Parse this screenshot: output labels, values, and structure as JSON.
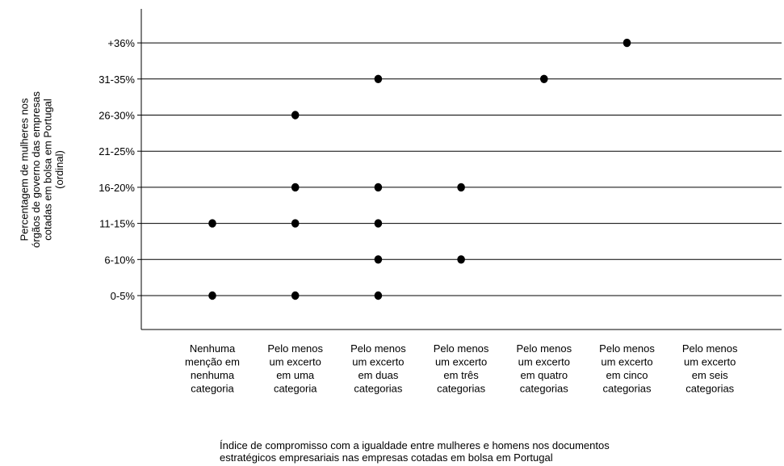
{
  "chart_data": {
    "type": "scatter",
    "title": "",
    "xlabel": "Índice de compromisso com a igualdade entre mulheres e homens nos documentos estratégicos empresariais nas empresas cotadas em bolsa em Portugal",
    "xlabel_lines": [
      "Índice de compromisso com a igualdade entre mulheres e homens nos documentos",
      "estratégicos empresariais nas empresas cotadas em bolsa em Portugal"
    ],
    "ylabel": "Percentagem de mulheres nos órgãos de governo das empresas cotadas em bolsa em Portugal (ordinal)",
    "ylabel_lines": [
      "Percentagem de mulheres nos",
      "órgãos de governo das empresas",
      "cotadas em bolsa em Portugal",
      "(ordinal)"
    ],
    "categories": [
      "Nenhuma menção em nenhuma categoria",
      "Pelo menos um excerto em uma categoria",
      "Pelo menos um excerto em duas categorias",
      "Pelo menos um excerto em três categorias",
      "Pelo menos um excerto em quatro categorias",
      "Pelo menos um excerto em cinco categorias",
      "Pelo menos um excerto em seis categorias"
    ],
    "category_lines": [
      [
        "Nenhuma",
        "menção em",
        "nenhuma",
        "categoria"
      ],
      [
        "Pelo menos",
        "um excerto",
        "em uma",
        "categoria"
      ],
      [
        "Pelo menos",
        "um excerto",
        "em duas",
        "categorias"
      ],
      [
        "Pelo menos",
        "um excerto",
        "em três",
        "categorias"
      ],
      [
        "Pelo menos",
        "um excerto",
        "em quatro",
        "categorias"
      ],
      [
        "Pelo menos",
        "um excerto",
        "em cinco",
        "categorias"
      ],
      [
        "Pelo menos",
        "um excerto",
        "em seis",
        "categorias"
      ]
    ],
    "y_categories": [
      "0-5%",
      "6-10%",
      "11-15%",
      "16-20%",
      "21-25%",
      "26-30%",
      "31-35%",
      "+36%"
    ],
    "grid": true,
    "points": [
      {
        "x": "Nenhuma menção em nenhuma categoria",
        "y": "0-5%"
      },
      {
        "x": "Nenhuma menção em nenhuma categoria",
        "y": "11-15%"
      },
      {
        "x": "Pelo menos um excerto em uma categoria",
        "y": "0-5%"
      },
      {
        "x": "Pelo menos um excerto em uma categoria",
        "y": "11-15%"
      },
      {
        "x": "Pelo menos um excerto em uma categoria",
        "y": "16-20%"
      },
      {
        "x": "Pelo menos um excerto em uma categoria",
        "y": "26-30%"
      },
      {
        "x": "Pelo menos um excerto em duas categorias",
        "y": "0-5%"
      },
      {
        "x": "Pelo menos um excerto em duas categorias",
        "y": "6-10%"
      },
      {
        "x": "Pelo menos um excerto em duas categorias",
        "y": "11-15%"
      },
      {
        "x": "Pelo menos um excerto em duas categorias",
        "y": "16-20%"
      },
      {
        "x": "Pelo menos um excerto em duas categorias",
        "y": "31-35%"
      },
      {
        "x": "Pelo menos um excerto em três categorias",
        "y": "6-10%"
      },
      {
        "x": "Pelo menos um excerto em três categorias",
        "y": "16-20%"
      },
      {
        "x": "Pelo menos um excerto em quatro categorias",
        "y": "31-35%"
      },
      {
        "x": "Pelo menos um excerto em cinco categorias",
        "y": "+36%"
      }
    ]
  }
}
